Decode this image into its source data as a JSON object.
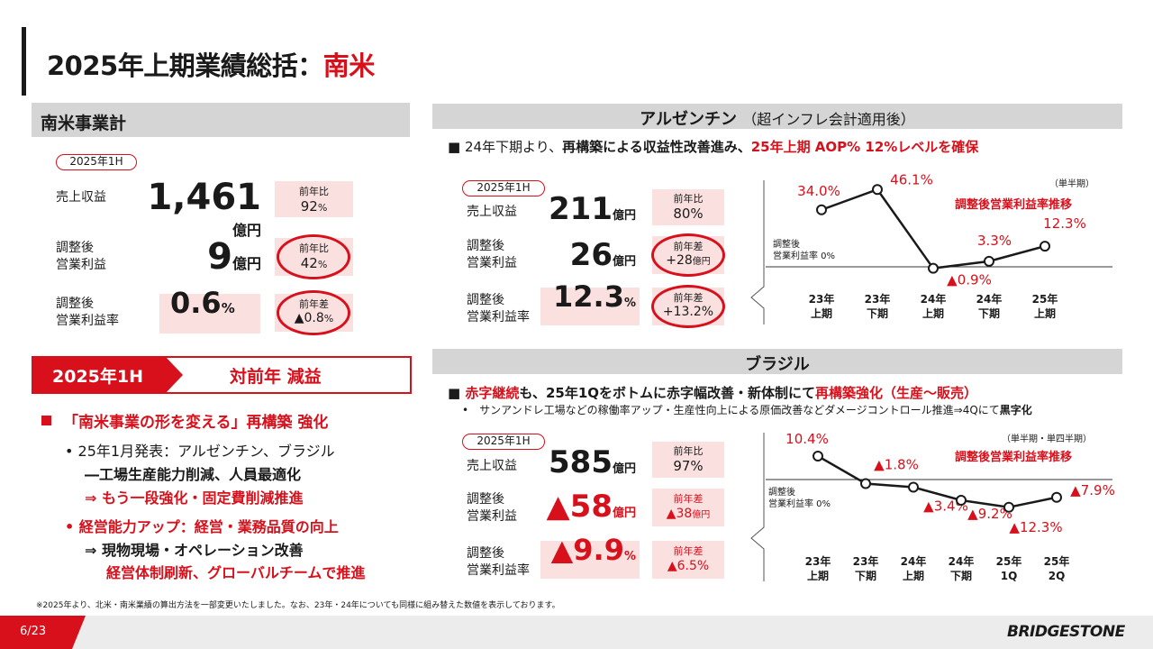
{
  "header": {
    "title_black": "2025年上期業績総括：",
    "title_red": "南米"
  },
  "south_america": {
    "section_title": "南米事業計",
    "period": "2025年1H",
    "rows": [
      {
        "label": "売上収益",
        "value": "1,461",
        "unit": "億円",
        "cmp_label": "前年比",
        "cmp_value": "92",
        "cmp_unit": "%"
      },
      {
        "label": "調整後\n営業利益",
        "value": "9",
        "unit": "億円",
        "cmp_label": "前年比",
        "cmp_value": "42",
        "cmp_unit": "%"
      },
      {
        "label": "調整後\n営業利益率",
        "value": "0.6",
        "unit": "%",
        "cmp_label": "前年差",
        "cmp_value": "▲0.8",
        "cmp_unit": "%"
      }
    ]
  },
  "summary": {
    "tag_period": "2025年1H",
    "tag_text": "対前年 減益",
    "bullet1": "「南米事業の形を変える」再構築 強化",
    "line1": "• 25年1月発表：アルゼンチン、ブラジル",
    "line2": "―工場生産能力削減、人員最適化",
    "line3": "⇒ もう一段強化・固定費削減推進",
    "bullet2": "• 経営能力アップ：経営・業務品質の向上",
    "line4": "⇒ 現物現場・オペレーション改善",
    "line5": "経営体制刷新、グローバルチームで推進"
  },
  "argentina": {
    "section_title": "アルゼンチン",
    "section_note": "（超インフレ会計適用後）",
    "headline_a": "■ 24年下期より、",
    "headline_b": "再構築による収益性改善進み、",
    "headline_c": "25年上期 AOP% 12%レベルを確保",
    "period": "2025年1H",
    "rows": [
      {
        "label": "売上収益",
        "value": "211",
        "unit": "億円",
        "cmp_label": "前年比",
        "cmp_value": "80%"
      },
      {
        "label": "調整後\n営業利益",
        "value": "26",
        "unit": "億円",
        "cmp_label": "前年差",
        "cmp_value": "+28",
        "cmp_unit": "億円"
      },
      {
        "label": "調整後\n営業利益率",
        "value": "12.3",
        "unit": "%",
        "cmp_label": "前年差",
        "cmp_value": "+13.2%"
      }
    ],
    "chart_unit": "（単半期）",
    "chart_title": "調整後営業利益率推移",
    "zero_label": "調整後\n営業利益率 0%"
  },
  "brazil": {
    "section_title": "ブラジル",
    "headline_a": "■ ",
    "headline_b": "赤字継続",
    "headline_c": "も、25年1Qをボトムに赤字幅改善・新体制にて",
    "headline_d": "再構築強化（生産～販売）",
    "sub": "•　サンアンドレ工場などの稼働率アップ・生産性向上による原価改善などダメージコントロール推進⇒4Qにて",
    "sub_bold": "黒字化",
    "period": "2025年1H",
    "rows": [
      {
        "label": "売上収益",
        "value": "585",
        "unit": "億円",
        "cmp_label": "前年比",
        "cmp_value": "97%"
      },
      {
        "label": "調整後\n営業利益",
        "value": "▲58",
        "unit": "億円",
        "cmp_label": "前年差",
        "cmp_value": "▲38",
        "cmp_unit": "億円"
      },
      {
        "label": "調整後\n営業利益率",
        "value": "▲9.9",
        "unit": "%",
        "cmp_label": "前年差",
        "cmp_value": "▲6.5%"
      }
    ],
    "chart_unit": "（単半期・単四半期）",
    "chart_title": "調整後営業利益率推移",
    "zero_label": "調整後\n営業利益率 0%"
  },
  "chart_data": [
    {
      "type": "line",
      "title": "調整後営業利益率推移",
      "categories": [
        "23年\n上期",
        "23年\n下期",
        "24年\n上期",
        "24年\n下期",
        "25年\n上期"
      ],
      "values": [
        34.0,
        46.1,
        -0.9,
        3.3,
        12.3
      ],
      "labels": [
        "34.0%",
        "46.1%",
        "▲0.9%",
        "3.3%",
        "12.3%"
      ]
    },
    {
      "type": "line",
      "title": "調整後営業利益率推移",
      "categories": [
        "23年\n上期",
        "23年\n下期",
        "24年\n上期",
        "24年\n下期",
        "25年\n1Q",
        "25年\n2Q"
      ],
      "values": [
        10.4,
        -1.8,
        -3.4,
        -9.2,
        -12.3,
        -7.9
      ],
      "labels": [
        "10.4%",
        "▲1.8%",
        "▲3.4%",
        "▲9.2%",
        "▲12.3%",
        "▲7.9%"
      ]
    }
  ],
  "footnote": "※2025年より、北米・南米業績の算出方法を一部変更いたしました。なお、23年・24年についても同様に組み替えた数値を表示しております。",
  "footer": {
    "page": "6/23",
    "brand": "BRIDGESTONE"
  }
}
